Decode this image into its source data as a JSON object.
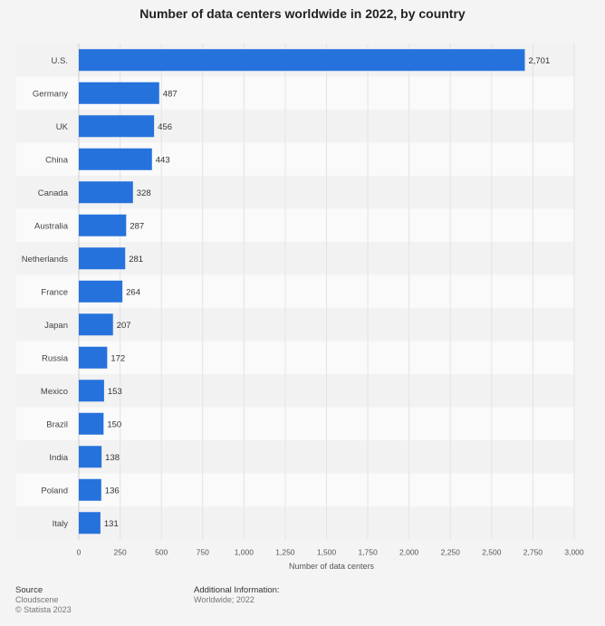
{
  "chart_data": {
    "type": "bar",
    "orientation": "horizontal",
    "title": "Number of data centers worldwide in 2022, by country",
    "categories": [
      "U.S.",
      "Germany",
      "UK",
      "China",
      "Canada",
      "Australia",
      "Netherlands",
      "France",
      "Japan",
      "Russia",
      "Mexico",
      "Brazil",
      "India",
      "Poland",
      "Italy"
    ],
    "values": [
      2701,
      487,
      456,
      443,
      328,
      287,
      281,
      264,
      207,
      172,
      153,
      150,
      138,
      136,
      131
    ],
    "value_labels": [
      "2,701",
      "487",
      "456",
      "443",
      "328",
      "287",
      "281",
      "264",
      "207",
      "172",
      "153",
      "150",
      "138",
      "136",
      "131"
    ],
    "xlabel": "Number of data centers",
    "ylabel": "",
    "xlim": [
      0,
      3000
    ],
    "x_ticks": [
      0,
      250,
      500,
      750,
      1000,
      1250,
      1500,
      1750,
      2000,
      2250,
      2500,
      2750,
      3000
    ],
    "x_tick_labels": [
      "0",
      "250",
      "500",
      "750",
      "1,000",
      "1,250",
      "1,500",
      "1,750",
      "2,000",
      "2,250",
      "2,500",
      "2,750",
      "3,000"
    ],
    "grid": true,
    "bar_color": "#2672dc"
  },
  "footer": {
    "source_heading": "Source",
    "source_name": "Cloudscene",
    "copyright": "© Statista 2023",
    "additional_heading": "Additional Information:",
    "additional_text": "Worldwide; 2022"
  }
}
